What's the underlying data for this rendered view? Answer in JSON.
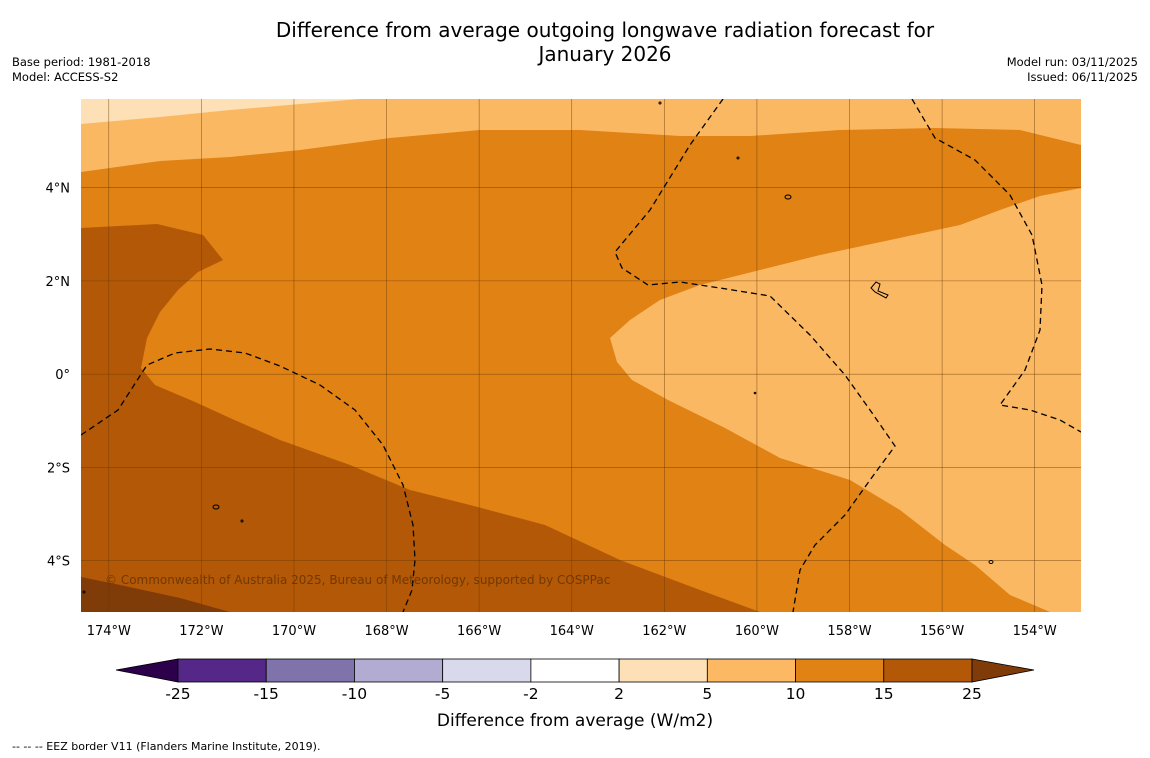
{
  "title": {
    "line1": "Difference from average outgoing longwave radiation forecast for",
    "line2": "January 2026"
  },
  "meta_left": {
    "base_period": "Base period: 1981-2018",
    "model": "Model: ACCESS-S2"
  },
  "meta_right": {
    "model_run": "Model run: 03/11/2025",
    "issued": "Issued: 06/11/2025"
  },
  "map": {
    "copyright": "© Commonwealth of Australia 2025, Bureau of Meteorology, supported by COSPPac",
    "lat_labels": [
      {
        "label": "4°N",
        "lat": 4
      },
      {
        "label": "2°N",
        "lat": 2
      },
      {
        "label": "0°",
        "lat": 0
      },
      {
        "label": "2°S",
        "lat": -2
      },
      {
        "label": "4°S",
        "lat": -4
      }
    ],
    "lon_labels": [
      {
        "label": "174°W",
        "lon": -174
      },
      {
        "label": "172°W",
        "lon": -172
      },
      {
        "label": "170°W",
        "lon": -170
      },
      {
        "label": "168°W",
        "lon": -168
      },
      {
        "label": "166°W",
        "lon": -166
      },
      {
        "label": "164°W",
        "lon": -164
      },
      {
        "label": "162°W",
        "lon": -162
      },
      {
        "label": "160°W",
        "lon": -160
      },
      {
        "label": "158°W",
        "lon": -158
      },
      {
        "label": "156°W",
        "lon": -156
      },
      {
        "label": "154°W",
        "lon": -154
      }
    ],
    "extent": {
      "lon_min": -174.6,
      "lon_max": -153.0,
      "lat_min": -5.1,
      "lat_max": 5.9
    }
  },
  "colorbar": {
    "title": "Difference from average (W/m2)",
    "ticks": [
      "-25",
      "-15",
      "-10",
      "-5",
      "-2",
      "2",
      "5",
      "10",
      "15",
      "25"
    ],
    "colors": [
      "#542788",
      "#8073ac",
      "#b2abd2",
      "#d8daeb",
      "#ffffff",
      "#fee0b6",
      "#fdb863",
      "#e08214",
      "#b35806"
    ],
    "extend_low_color": "#2d004b",
    "extend_high_color": "#7f3b08"
  },
  "footnote": "--  --  -- EEZ border V11 (Flanders Marine Institute, 2019).",
  "colors": {
    "lightest": "#fee0b6",
    "light": "#fbb862",
    "mid": "#e08214",
    "dark": "#b35806",
    "darkest": "#7f3b08"
  }
}
